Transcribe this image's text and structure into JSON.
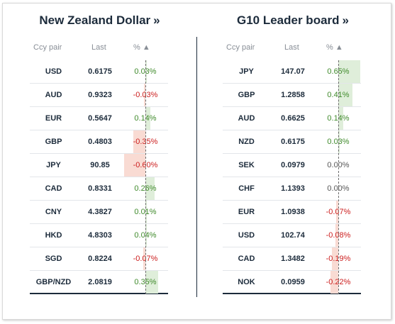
{
  "left": {
    "title": "New Zealand Dollar",
    "title_chevron": "»",
    "headers": {
      "pair": "Ccy pair",
      "last": "Last",
      "pct": "% ▲"
    },
    "rows": [
      {
        "pair": "USD",
        "last": "0.6175",
        "pct": "0.03%",
        "value": 0.03
      },
      {
        "pair": "AUD",
        "last": "0.9323",
        "pct": "-0.03%",
        "value": -0.03
      },
      {
        "pair": "EUR",
        "last": "0.5647",
        "pct": "0.14%",
        "value": 0.14
      },
      {
        "pair": "GBP",
        "last": "0.4803",
        "pct": "-0.35%",
        "value": -0.35
      },
      {
        "pair": "JPY",
        "last": "90.85",
        "pct": "-0.60%",
        "value": -0.6
      },
      {
        "pair": "CAD",
        "last": "0.8331",
        "pct": "0.26%",
        "value": 0.26
      },
      {
        "pair": "CNY",
        "last": "4.3827",
        "pct": "0.01%",
        "value": 0.01
      },
      {
        "pair": "HKD",
        "last": "4.8303",
        "pct": "0.04%",
        "value": 0.04
      },
      {
        "pair": "SGD",
        "last": "0.8224",
        "pct": "-0.07%",
        "value": -0.07
      },
      {
        "pair": "GBP/NZD",
        "last": "2.0819",
        "pct": "0.35%",
        "value": 0.35
      }
    ]
  },
  "right": {
    "title": "G10 Leader board",
    "title_chevron": "»",
    "headers": {
      "pair": "Ccy pair",
      "last": "Last",
      "pct": "% ▲"
    },
    "rows": [
      {
        "pair": "JPY",
        "last": "147.07",
        "pct": "0.65%",
        "value": 0.65
      },
      {
        "pair": "GBP",
        "last": "1.2858",
        "pct": "0.41%",
        "value": 0.41
      },
      {
        "pair": "AUD",
        "last": "0.6625",
        "pct": "0.14%",
        "value": 0.14
      },
      {
        "pair": "NZD",
        "last": "0.6175",
        "pct": "0.03%",
        "value": 0.03
      },
      {
        "pair": "SEK",
        "last": "0.0979",
        "pct": "0.00%",
        "value": 0.0
      },
      {
        "pair": "CHF",
        "last": "1.1393",
        "pct": "0.00%",
        "value": 0.0
      },
      {
        "pair": "EUR",
        "last": "1.0938",
        "pct": "-0.07%",
        "value": -0.07
      },
      {
        "pair": "USD",
        "last": "102.74",
        "pct": "-0.08%",
        "value": -0.08
      },
      {
        "pair": "CAD",
        "last": "1.3482",
        "pct": "-0.19%",
        "value": -0.19
      },
      {
        "pair": "NOK",
        "last": "0.0959",
        "pct": "-0.22%",
        "value": -0.22
      }
    ]
  },
  "colors": {
    "positive_text": "#3f8a2b",
    "negative_text": "#cc1f1f",
    "positive_bar": "#dfeeda",
    "negative_bar": "#f9dbd3",
    "heading": "#1c2b3b"
  }
}
